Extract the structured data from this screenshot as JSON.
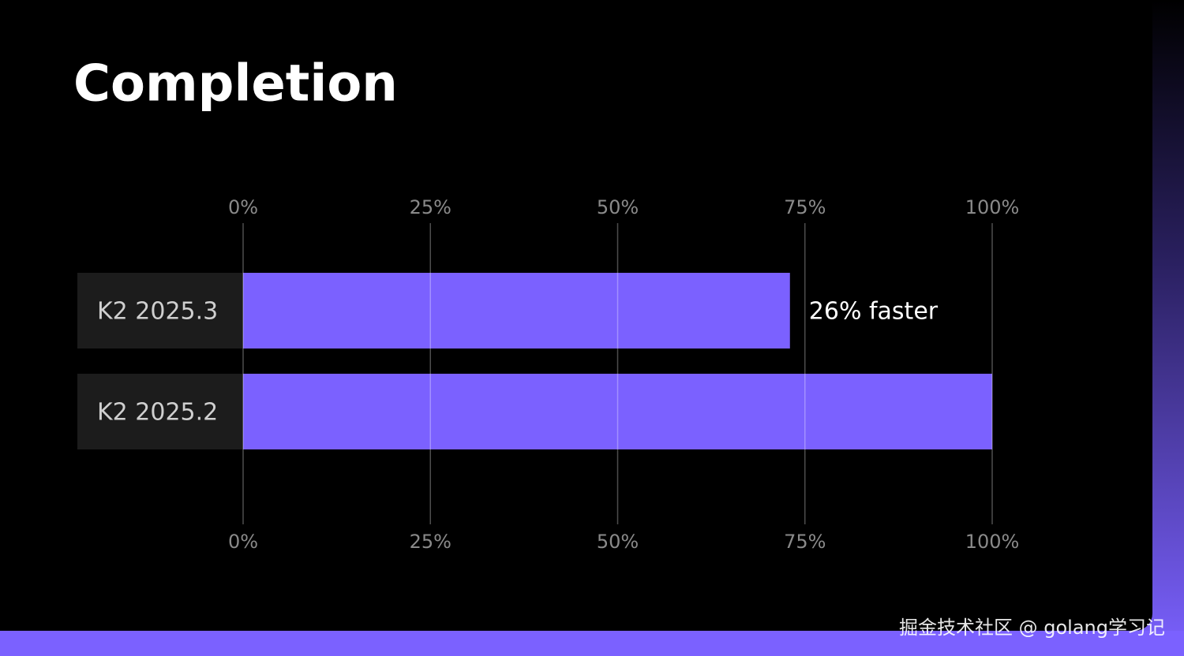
{
  "chart_data": {
    "type": "bar",
    "title": "Completion",
    "categories": [
      "K2 2025.3",
      "K2 2025.2"
    ],
    "values": [
      73,
      100
    ],
    "color": "#7b61ff",
    "xlim": [
      0,
      100
    ],
    "xticks": [
      {
        "value": 0,
        "label": "0%"
      },
      {
        "value": 25,
        "label": "25%"
      },
      {
        "value": 50,
        "label": "50%"
      },
      {
        "value": 75,
        "label": "75%"
      },
      {
        "value": 100,
        "label": "100%"
      }
    ],
    "grid": true,
    "annotation": "26% faster"
  },
  "watermark": "掘金技术社区 @ golang学习记"
}
